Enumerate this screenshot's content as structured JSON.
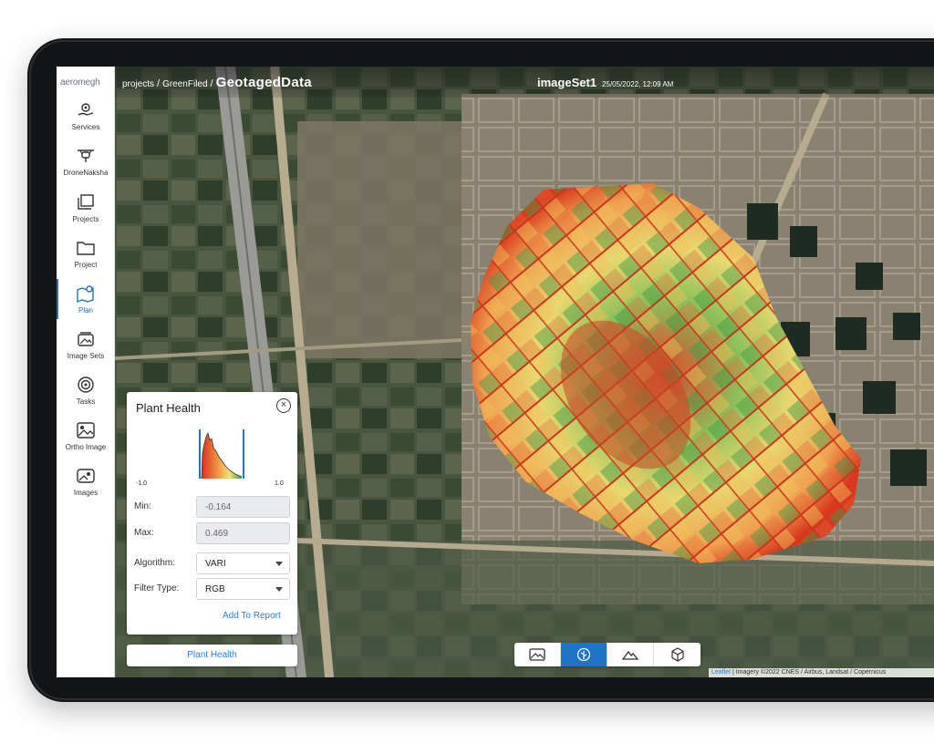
{
  "sidebar": {
    "logo": "aeromegh",
    "items": [
      {
        "label": "Services",
        "icon": "gear-hand-icon"
      },
      {
        "label": "DroneNaksha",
        "icon": "drone-icon"
      },
      {
        "label": "Projects",
        "icon": "folders-icon"
      },
      {
        "label": "Project",
        "icon": "folder-icon"
      },
      {
        "label": "Plan",
        "icon": "map-pin-icon",
        "active": true
      },
      {
        "label": "Image Sets",
        "icon": "image-stack-icon"
      },
      {
        "label": "Tasks",
        "icon": "target-icon"
      },
      {
        "label": "Ortho Image",
        "icon": "image-icon"
      },
      {
        "label": "Images",
        "icon": "photo-icon"
      }
    ]
  },
  "header": {
    "crumb_1": "projects",
    "crumb_2": "GreenFiled",
    "crumb_3": "GeotagedData",
    "separator": "/",
    "image_set": "imageSet1",
    "datetime": "25/05/2022, 12:09 AM"
  },
  "panel": {
    "title": "Plant Health",
    "range_min_label": "-1.0",
    "range_max_label": "1.0",
    "min_label": "Min:",
    "min_value": "-0.164",
    "max_label": "Max:",
    "max_value": "0.469",
    "algorithm_label": "Algorithm:",
    "algorithm_value": "VARI",
    "filter_label": "Filter Type:",
    "filter_value": "RGB",
    "add_to_report": "Add To Report"
  },
  "plant_health_button": "Plant Health",
  "toolbar": {
    "tools": [
      "image-icon",
      "ndvi-leaf-icon",
      "terrain-icon",
      "cube-icon"
    ],
    "active_index": 1
  },
  "attribution": {
    "link": "Leaflet",
    "text": " | Imagery ©2022 CNES / Airbus, Landsat / Copernicus"
  },
  "colors": {
    "accent": "#1f73c8",
    "link": "#2a7ed2",
    "health_low": "#d7301f",
    "health_mid": "#f4e27a",
    "health_high": "#2fa046"
  }
}
